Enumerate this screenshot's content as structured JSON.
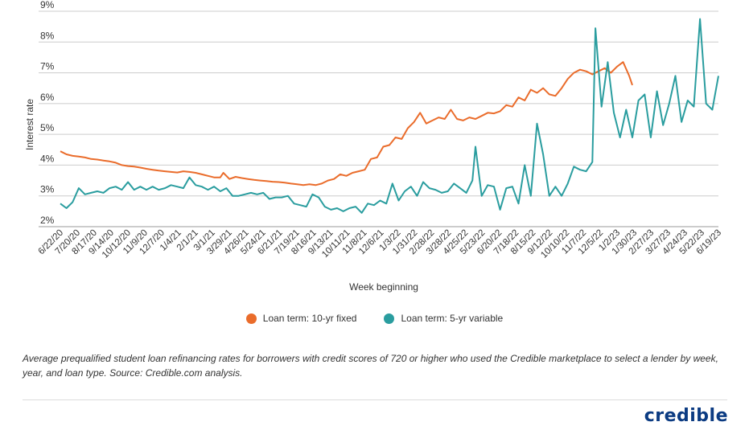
{
  "colors": {
    "fixed": "#ea6c2b",
    "variable": "#2a9d9f",
    "grid": "#cccccc",
    "text": "#333333"
  },
  "chart_data": {
    "type": "line",
    "xlabel": "Week beginning",
    "ylabel": "Interest rate",
    "ylim": [
      2,
      9
    ],
    "y_ticks": [
      "2%",
      "3%",
      "4%",
      "5%",
      "6%",
      "7%",
      "8%",
      "9%"
    ],
    "x_tick_labels": [
      "6/22/20",
      "7/20/20",
      "8/17/20",
      "9/14/20",
      "10/12/20",
      "11/9/20",
      "12/7/20",
      "1/4/21",
      "2/1/21",
      "3/1/21",
      "3/29/21",
      "4/26/21",
      "5/24/21",
      "6/21/21",
      "7/19/21",
      "8/16/21",
      "9/13/21",
      "10/11/21",
      "11/8/21",
      "12/6/21",
      "1/3/22",
      "1/31/22",
      "2/28/22",
      "3/28/22",
      "4/25/22",
      "5/23/22",
      "6/20/22",
      "7/18/22",
      "8/15/22",
      "9/12/22",
      "10/10/22",
      "11/7/22",
      "12/5/22",
      "1/2/23",
      "1/30/23",
      "2/27/23",
      "3/27/23",
      "4/24/23",
      "5/22/23",
      "6/19/23"
    ],
    "grid": "horizontal",
    "legend_position": "bottom",
    "series": [
      {
        "name": "Loan term: 10-yr fixed",
        "color": "#ea6c2b",
        "points": [
          [
            0,
            4.45
          ],
          [
            2,
            4.35
          ],
          [
            4,
            4.3
          ],
          [
            6,
            4.28
          ],
          [
            8,
            4.25
          ],
          [
            10,
            4.2
          ],
          [
            12,
            4.18
          ],
          [
            14,
            4.15
          ],
          [
            16,
            4.12
          ],
          [
            18,
            4.08
          ],
          [
            20,
            4.0
          ],
          [
            22,
            3.97
          ],
          [
            24,
            3.95
          ],
          [
            26,
            3.92
          ],
          [
            28,
            3.88
          ],
          [
            30,
            3.85
          ],
          [
            32,
            3.82
          ],
          [
            34,
            3.8
          ],
          [
            36,
            3.78
          ],
          [
            38,
            3.76
          ],
          [
            40,
            3.8
          ],
          [
            42,
            3.78
          ],
          [
            44,
            3.75
          ],
          [
            46,
            3.7
          ],
          [
            48,
            3.65
          ],
          [
            50,
            3.6
          ],
          [
            52,
            3.6
          ],
          [
            53,
            3.75
          ],
          [
            55,
            3.55
          ],
          [
            57,
            3.62
          ],
          [
            59,
            3.58
          ],
          [
            61,
            3.55
          ],
          [
            63,
            3.52
          ],
          [
            65,
            3.5
          ],
          [
            67,
            3.48
          ],
          [
            69,
            3.46
          ],
          [
            71,
            3.45
          ],
          [
            73,
            3.43
          ],
          [
            75,
            3.4
          ],
          [
            77,
            3.38
          ],
          [
            79,
            3.35
          ],
          [
            81,
            3.38
          ],
          [
            83,
            3.35
          ],
          [
            85,
            3.4
          ],
          [
            87,
            3.5
          ],
          [
            89,
            3.55
          ],
          [
            91,
            3.7
          ],
          [
            93,
            3.65
          ],
          [
            95,
            3.75
          ],
          [
            97,
            3.8
          ],
          [
            99,
            3.85
          ],
          [
            101,
            4.2
          ],
          [
            103,
            4.25
          ],
          [
            105,
            4.6
          ],
          [
            107,
            4.65
          ],
          [
            109,
            4.9
          ],
          [
            111,
            4.85
          ],
          [
            113,
            5.2
          ],
          [
            115,
            5.4
          ],
          [
            117,
            5.7
          ],
          [
            119,
            5.35
          ],
          [
            121,
            5.45
          ],
          [
            123,
            5.55
          ],
          [
            125,
            5.5
          ],
          [
            127,
            5.8
          ],
          [
            129,
            5.5
          ],
          [
            131,
            5.45
          ],
          [
            133,
            5.55
          ],
          [
            135,
            5.5
          ],
          [
            137,
            5.6
          ],
          [
            139,
            5.7
          ],
          [
            141,
            5.68
          ],
          [
            143,
            5.75
          ],
          [
            145,
            5.95
          ],
          [
            147,
            5.9
          ],
          [
            149,
            6.2
          ],
          [
            151,
            6.1
          ],
          [
            153,
            6.45
          ],
          [
            155,
            6.35
          ],
          [
            157,
            6.5
          ],
          [
            159,
            6.3
          ],
          [
            161,
            6.25
          ],
          [
            163,
            6.5
          ],
          [
            165,
            6.8
          ],
          [
            167,
            7.0
          ],
          [
            169,
            7.1
          ],
          [
            171,
            7.05
          ],
          [
            173,
            6.95
          ],
          [
            175,
            7.05
          ],
          [
            177,
            7.15
          ],
          [
            179,
            7.0
          ],
          [
            181,
            7.2
          ],
          [
            183,
            7.35
          ],
          [
            185,
            6.9
          ],
          [
            186,
            6.6
          ]
        ]
      },
      {
        "name": "Loan term: 5-yr variable",
        "color": "#2a9d9f",
        "points": [
          [
            0,
            2.75
          ],
          [
            2,
            2.6
          ],
          [
            4,
            2.8
          ],
          [
            6,
            3.25
          ],
          [
            8,
            3.05
          ],
          [
            10,
            3.1
          ],
          [
            12,
            3.15
          ],
          [
            14,
            3.1
          ],
          [
            16,
            3.25
          ],
          [
            18,
            3.3
          ],
          [
            20,
            3.2
          ],
          [
            22,
            3.45
          ],
          [
            24,
            3.2
          ],
          [
            26,
            3.3
          ],
          [
            28,
            3.2
          ],
          [
            30,
            3.3
          ],
          [
            32,
            3.2
          ],
          [
            34,
            3.25
          ],
          [
            36,
            3.35
          ],
          [
            38,
            3.3
          ],
          [
            40,
            3.25
          ],
          [
            42,
            3.6
          ],
          [
            44,
            3.35
          ],
          [
            46,
            3.3
          ],
          [
            48,
            3.2
          ],
          [
            50,
            3.3
          ],
          [
            52,
            3.15
          ],
          [
            54,
            3.25
          ],
          [
            56,
            3.0
          ],
          [
            58,
            3.0
          ],
          [
            60,
            3.05
          ],
          [
            62,
            3.1
          ],
          [
            64,
            3.05
          ],
          [
            66,
            3.1
          ],
          [
            68,
            2.9
          ],
          [
            70,
            2.95
          ],
          [
            72,
            2.95
          ],
          [
            74,
            3.0
          ],
          [
            76,
            2.75
          ],
          [
            78,
            2.7
          ],
          [
            80,
            2.65
          ],
          [
            82,
            3.05
          ],
          [
            84,
            2.95
          ],
          [
            86,
            2.65
          ],
          [
            88,
            2.55
          ],
          [
            90,
            2.6
          ],
          [
            92,
            2.5
          ],
          [
            94,
            2.6
          ],
          [
            96,
            2.65
          ],
          [
            98,
            2.45
          ],
          [
            100,
            2.75
          ],
          [
            102,
            2.7
          ],
          [
            104,
            2.85
          ],
          [
            106,
            2.75
          ],
          [
            108,
            3.4
          ],
          [
            110,
            2.85
          ],
          [
            112,
            3.15
          ],
          [
            114,
            3.3
          ],
          [
            116,
            3.0
          ],
          [
            118,
            3.45
          ],
          [
            120,
            3.25
          ],
          [
            122,
            3.2
          ],
          [
            124,
            3.1
          ],
          [
            126,
            3.15
          ],
          [
            128,
            3.4
          ],
          [
            130,
            3.25
          ],
          [
            132,
            3.1
          ],
          [
            134,
            3.5
          ],
          [
            135,
            4.6
          ],
          [
            137,
            3.0
          ],
          [
            139,
            3.35
          ],
          [
            141,
            3.3
          ],
          [
            143,
            2.55
          ],
          [
            145,
            3.25
          ],
          [
            147,
            3.3
          ],
          [
            149,
            2.75
          ],
          [
            151,
            4.0
          ],
          [
            153,
            3.0
          ],
          [
            155,
            5.35
          ],
          [
            157,
            4.35
          ],
          [
            159,
            3.0
          ],
          [
            161,
            3.3
          ],
          [
            163,
            3.0
          ],
          [
            165,
            3.4
          ],
          [
            167,
            3.95
          ],
          [
            169,
            3.85
          ],
          [
            171,
            3.8
          ],
          [
            173,
            4.1
          ],
          [
            174,
            8.45
          ],
          [
            176,
            5.9
          ],
          [
            178,
            7.35
          ],
          [
            180,
            5.7
          ],
          [
            182,
            4.9
          ],
          [
            184,
            5.8
          ],
          [
            186,
            4.9
          ],
          [
            188,
            6.1
          ],
          [
            190,
            6.3
          ],
          [
            192,
            4.9
          ],
          [
            194,
            6.4
          ],
          [
            196,
            5.3
          ],
          [
            198,
            6.0
          ],
          [
            200,
            6.9
          ],
          [
            202,
            5.4
          ],
          [
            204,
            6.1
          ],
          [
            206,
            5.9
          ],
          [
            208,
            8.75
          ],
          [
            210,
            6.0
          ],
          [
            212,
            5.8
          ],
          [
            214,
            6.9
          ]
        ]
      }
    ]
  },
  "legend": {
    "items": [
      {
        "label": "Loan term: 10-yr fixed",
        "color": "#ea6c2b"
      },
      {
        "label": "Loan term: 5-yr variable",
        "color": "#2a9d9f"
      }
    ]
  },
  "caption": "Average prequalified student loan refinancing rates for borrowers with credit scores of 720 or higher who used the Credible marketplace to select a lender by week, year, and loan type. Source: Credible.com analysis.",
  "logo": "credible"
}
